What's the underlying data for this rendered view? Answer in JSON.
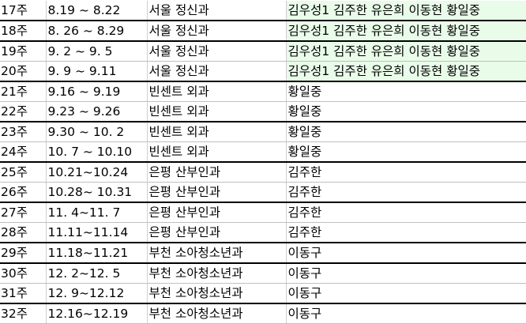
{
  "rows": [
    {
      "week": "17주",
      "dates": "8.19 ~ 8.22",
      "department": "서울 정신과",
      "staff": "김우성1 김주한 유은희 이동현 황일중",
      "group_start": false,
      "highlight_staff": true
    },
    {
      "week": "18주",
      "dates": "8. 26 ~ 8.29",
      "department": "서울 정신과",
      "staff": "김우성1 김주한 유은희 이동현 황일중",
      "group_start": true,
      "highlight_staff": true
    },
    {
      "week": "19주",
      "dates": "9. 2 ~ 9. 5",
      "department": "서울 정신과",
      "staff": "김우성1 김주한 유은희 이동현 황일중",
      "group_start": true,
      "highlight_staff": true
    },
    {
      "week": "20주",
      "dates": "9. 9 ~ 9.11",
      "department": "서울 정신과",
      "staff": "김우성1 김주한 유은희 이동현 황일중",
      "group_start": false,
      "highlight_staff": true
    },
    {
      "week": "21주",
      "dates": "9.16 ~ 9.19",
      "department": "빈센트 외과",
      "staff": "황일중",
      "group_start": true,
      "highlight_staff": false
    },
    {
      "week": "22주",
      "dates": "9.23 ~ 9.26",
      "department": "빈센트 외과",
      "staff": "황일중",
      "group_start": false,
      "highlight_staff": false
    },
    {
      "week": "23주",
      "dates": "9.30 ~ 10. 2",
      "department": "빈센트 외과",
      "staff": "황일중",
      "group_start": true,
      "highlight_staff": false
    },
    {
      "week": "24주",
      "dates": "10. 7 ~ 10.10",
      "department": "빈센트 외과",
      "staff": "황일중",
      "group_start": false,
      "highlight_staff": false
    },
    {
      "week": "25주",
      "dates": "10.21~10.24",
      "department": "은평 산부인과",
      "staff": "김주한",
      "group_start": true,
      "highlight_staff": false
    },
    {
      "week": "26주",
      "dates": "10.28~ 10.31",
      "department": "은평 산부인과",
      "staff": "김주한",
      "group_start": false,
      "highlight_staff": false
    },
    {
      "week": "27주",
      "dates": "11. 4~11. 7",
      "department": "은평 산부인과",
      "staff": "김주한",
      "group_start": true,
      "highlight_staff": false
    },
    {
      "week": "28주",
      "dates": "11.11~11.14",
      "department": "은평 산부인과",
      "staff": "김주한",
      "group_start": false,
      "highlight_staff": false
    },
    {
      "week": "29주",
      "dates": "11.18~11.21",
      "department": "부천 소아청소년과",
      "staff": "이동구",
      "group_start": true,
      "highlight_staff": false
    },
    {
      "week": "30주",
      "dates": "12. 2~12. 5",
      "department": "부천 소아청소년과",
      "staff": "이동구",
      "group_start": true,
      "highlight_staff": false
    },
    {
      "week": "31주",
      "dates": "12. 9~12.12",
      "department": "부천 소아청소년과",
      "staff": "이동구",
      "group_start": false,
      "highlight_staff": false
    },
    {
      "week": "32주",
      "dates": "12.16~12.19",
      "department": "부천 소아청소년과",
      "staff": "이동구",
      "group_start": true,
      "highlight_staff": false
    }
  ]
}
